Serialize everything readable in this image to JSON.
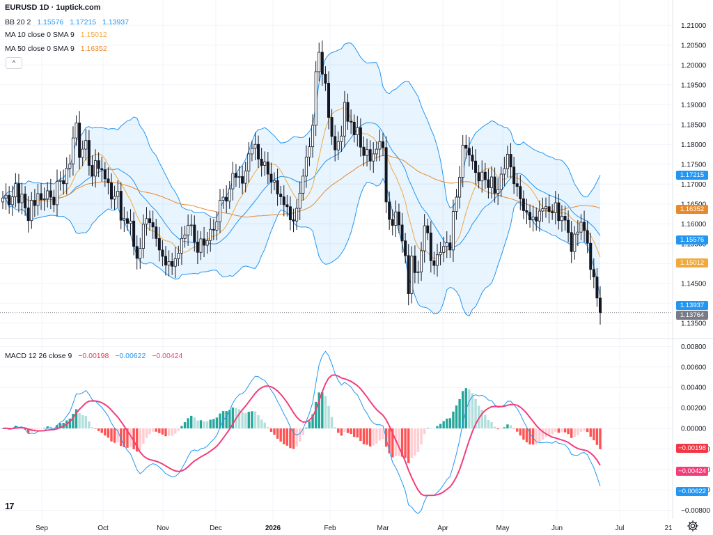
{
  "title": "EURUSD 1D · 1uptick.com",
  "legend": {
    "bb": {
      "label": "BB 20 2",
      "v1": "1.15576",
      "v2": "1.17215",
      "v3": "1.13937",
      "color": "#2196f3"
    },
    "ma10": {
      "label": "MA 10 close 0 SMA 9",
      "v": "1.15012",
      "color": "#f2a93b"
    },
    "ma50": {
      "label": "MA 50 close 0 SMA 9",
      "v": "1.16352",
      "color": "#e8892b"
    },
    "macd": {
      "label": "MACD 12 26 close 9",
      "v1": "−0.00198",
      "v2": "−0.00622",
      "v3": "−0.00424"
    }
  },
  "collapse_glyph": "^",
  "logo_text": "17",
  "price_tags": [
    {
      "value": "1.17215",
      "color": "#2196f3"
    },
    {
      "value": "1.16352",
      "color": "#e8892b"
    },
    {
      "value": "1.15576",
      "color": "#2196f3"
    },
    {
      "value": "1.15012",
      "color": "#f2a93b"
    },
    {
      "value": "1.13937",
      "color": "#2196f3"
    },
    {
      "value": "1.13764",
      "color": "#787b86"
    }
  ],
  "macd_tags": [
    {
      "value": "−0.00198",
      "color": "#f23645"
    },
    {
      "value": "−0.00424",
      "color": "#f23d7a"
    },
    {
      "value": "−0.00622",
      "color": "#2196f3"
    }
  ],
  "chart_data": [
    {
      "type": "candlestick",
      "symbol": "EURUSD",
      "timeframe": "1D",
      "ylim": [
        1.1325,
        1.2125
      ],
      "y_ticks": [
        "1.21000",
        "1.20500",
        "1.20000",
        "1.19500",
        "1.19000",
        "1.18500",
        "1.18000",
        "1.17500",
        "1.17000",
        "1.16500",
        "1.16000",
        "1.15500",
        "1.15000",
        "1.14500",
        "1.14000",
        "1.13500"
      ],
      "x_ticks": [
        "Sep",
        "Oct",
        "Nov",
        "Dec",
        "2026",
        "Feb",
        "Mar",
        "Apr",
        "May",
        "Jun",
        "Jul",
        "21"
      ],
      "last_price": 1.13764,
      "closes": [
        1.1665,
        1.1672,
        1.1648,
        1.1668,
        1.1701,
        1.1653,
        1.1675,
        1.164,
        1.1608,
        1.1659,
        1.1646,
        1.1676,
        1.1661,
        1.1663,
        1.1683,
        1.1667,
        1.1648,
        1.1707,
        1.1709,
        1.1701,
        1.174,
        1.1751,
        1.1816,
        1.1854,
        1.1767,
        1.1788,
        1.181,
        1.1747,
        1.172,
        1.1759,
        1.1739,
        1.1736,
        1.1713,
        1.1703,
        1.1662,
        1.1669,
        1.1682,
        1.1609,
        1.1613,
        1.1601,
        1.1607,
        1.1543,
        1.1513,
        1.1538,
        1.1599,
        1.1613,
        1.1603,
        1.1592,
        1.1563,
        1.1534,
        1.1518,
        1.1496,
        1.1505,
        1.1493,
        1.1512,
        1.1526,
        1.1563,
        1.1572,
        1.1596,
        1.1597,
        1.1554,
        1.1528,
        1.1562,
        1.1546,
        1.1558,
        1.1586,
        1.1584,
        1.1605,
        1.1659,
        1.1667,
        1.1657,
        1.1688,
        1.1727,
        1.1717,
        1.1719,
        1.1702,
        1.1733,
        1.1776,
        1.179,
        1.18,
        1.1763,
        1.1747,
        1.1756,
        1.1725,
        1.1705,
        1.1709,
        1.1675,
        1.1668,
        1.1648,
        1.1643,
        1.161,
        1.1607,
        1.1639,
        1.1677,
        1.172,
        1.1768,
        1.1794,
        1.1848,
        1.1983,
        1.2032,
        1.1977,
        1.1954,
        1.1868,
        1.182,
        1.1786,
        1.1807,
        1.1821,
        1.1906,
        1.1858,
        1.1856,
        1.1824,
        1.1842,
        1.1793,
        1.1772,
        1.1787,
        1.1758,
        1.1776,
        1.1788,
        1.1807,
        1.1792,
        1.1655,
        1.1611,
        1.1596,
        1.163,
        1.1597,
        1.1557,
        1.152,
        1.1424,
        1.1519,
        1.1477,
        1.1479,
        1.1532,
        1.1595,
        1.1577,
        1.1507,
        1.1495,
        1.1522,
        1.1528,
        1.1543,
        1.1552,
        1.1534,
        1.1631,
        1.1667,
        1.1717,
        1.1798,
        1.179,
        1.1773,
        1.1758,
        1.1729,
        1.1708,
        1.173,
        1.1711,
        1.1691,
        1.1718,
        1.1677,
        1.1686,
        1.1725,
        1.1739,
        1.1775,
        1.1743,
        1.1701,
        1.1694,
        1.1663,
        1.1633,
        1.1629,
        1.161,
        1.1617,
        1.1607,
        1.1632,
        1.1638,
        1.1643,
        1.1631,
        1.1628,
        1.1653,
        1.1608,
        1.1619,
        1.1609,
        1.1578,
        1.153,
        1.1574,
        1.1579,
        1.1604,
        1.1583,
        1.1551,
        1.1485,
        1.1466,
        1.1413,
        1.1376
      ]
    },
    {
      "type": "bar+line",
      "name": "MACD 12 26 close 9",
      "ylim": [
        -0.0085,
        0.0085
      ],
      "y_ticks": [
        "0.00800",
        "0.00600",
        "0.00400",
        "0.00200",
        "0.00000",
        "−0.00200",
        "−0.00400",
        "−0.00600",
        "−0.00800"
      ],
      "last": {
        "histogram": -0.00198,
        "macd": -0.00622,
        "signal": -0.00424
      }
    }
  ]
}
